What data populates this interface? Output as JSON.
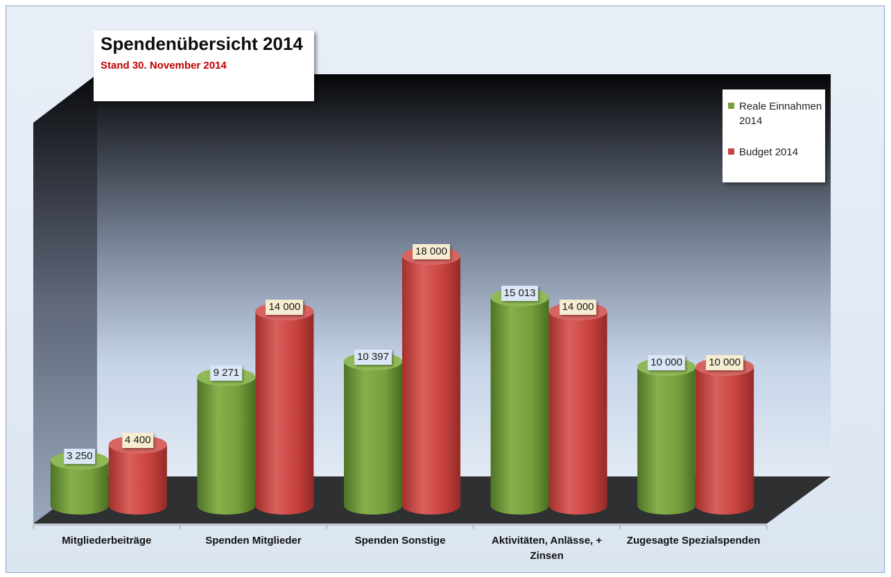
{
  "chart_data": {
    "type": "bar",
    "title": "Spendenübersicht 2014",
    "subtitle": "Stand 30. November 2014",
    "categories": [
      "Mitgliederbeiträge",
      "Spenden Mitglieder",
      "Spenden Sonstige",
      "Aktivitäten, Anlässe, + Zinsen",
      "Zugesagte Spezialspenden"
    ],
    "series": [
      {
        "name": "Reale Einnahmen 2014",
        "color": "#76a03c",
        "values": [
          3250,
          9271,
          10397,
          15013,
          10000
        ],
        "labels": [
          "3 250",
          "9 271",
          "10 397",
          "15 013",
          "10 000"
        ]
      },
      {
        "name": "Budget 2014",
        "color": "#c8423f",
        "values": [
          4400,
          14000,
          18000,
          14000,
          10000
        ],
        "labels": [
          "4 400",
          "14 000",
          "18 000",
          "14 000",
          "10 000"
        ]
      }
    ],
    "ylim": [
      0,
      20000
    ],
    "grid": false,
    "legend": "top-right",
    "style": "3d-cylinder",
    "xlabel": "",
    "ylabel": ""
  }
}
